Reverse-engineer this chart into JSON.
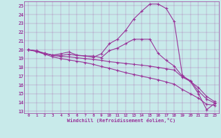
{
  "xlabel": "Windchill (Refroidissement éolien,°C)",
  "xlim": [
    -0.5,
    23.5
  ],
  "ylim": [
    12.8,
    25.5
  ],
  "xticks": [
    0,
    1,
    2,
    3,
    4,
    5,
    6,
    7,
    8,
    9,
    10,
    11,
    12,
    13,
    14,
    15,
    16,
    17,
    18,
    19,
    20,
    21,
    22,
    23
  ],
  "yticks": [
    13,
    14,
    15,
    16,
    17,
    18,
    19,
    20,
    21,
    22,
    23,
    24,
    25
  ],
  "bg_color": "#c8eaea",
  "line_color": "#993399",
  "line1_x": [
    0,
    1,
    2,
    3,
    4,
    5,
    6,
    7,
    8,
    9,
    10,
    11,
    12,
    13,
    14,
    15,
    16,
    17,
    18,
    19,
    20,
    21,
    22,
    23
  ],
  "line1_y": [
    20.0,
    19.9,
    19.6,
    19.4,
    19.35,
    19.5,
    19.35,
    19.3,
    19.15,
    19.55,
    20.7,
    21.2,
    22.2,
    23.5,
    24.4,
    25.2,
    25.2,
    24.7,
    23.2,
    17.1,
    16.4,
    15.0,
    13.2,
    13.9
  ],
  "line2_x": [
    0,
    1,
    2,
    3,
    4,
    5,
    6,
    7,
    8,
    9,
    10,
    11,
    12,
    13,
    14,
    15,
    16,
    17,
    18,
    19,
    20,
    21,
    22,
    23
  ],
  "line2_y": [
    20.0,
    19.85,
    19.6,
    19.4,
    19.55,
    19.75,
    19.4,
    19.3,
    19.3,
    19.1,
    19.9,
    20.2,
    20.7,
    21.2,
    21.2,
    21.2,
    19.6,
    18.8,
    18.15,
    17.0,
    16.5,
    15.3,
    14.4,
    13.95
  ],
  "line3_x": [
    0,
    1,
    2,
    3,
    4,
    5,
    6,
    7,
    8,
    9,
    10,
    11,
    12,
    13,
    14,
    15,
    16,
    17,
    18,
    19,
    20,
    21,
    22,
    23
  ],
  "line3_y": [
    20.0,
    19.85,
    19.6,
    19.35,
    19.25,
    19.2,
    19.1,
    19.0,
    18.9,
    18.8,
    18.65,
    18.55,
    18.45,
    18.35,
    18.25,
    18.15,
    18.0,
    17.85,
    17.7,
    16.9,
    16.4,
    15.7,
    14.7,
    14.1
  ],
  "line4_x": [
    0,
    1,
    2,
    3,
    4,
    5,
    6,
    7,
    8,
    9,
    10,
    11,
    12,
    13,
    14,
    15,
    16,
    17,
    18,
    19,
    20,
    21,
    22,
    23
  ],
  "line4_y": [
    20.0,
    19.8,
    19.5,
    19.2,
    19.0,
    18.85,
    18.7,
    18.55,
    18.35,
    18.1,
    17.9,
    17.65,
    17.4,
    17.2,
    17.0,
    16.8,
    16.6,
    16.35,
    16.1,
    15.5,
    15.0,
    14.5,
    13.8,
    13.7
  ]
}
